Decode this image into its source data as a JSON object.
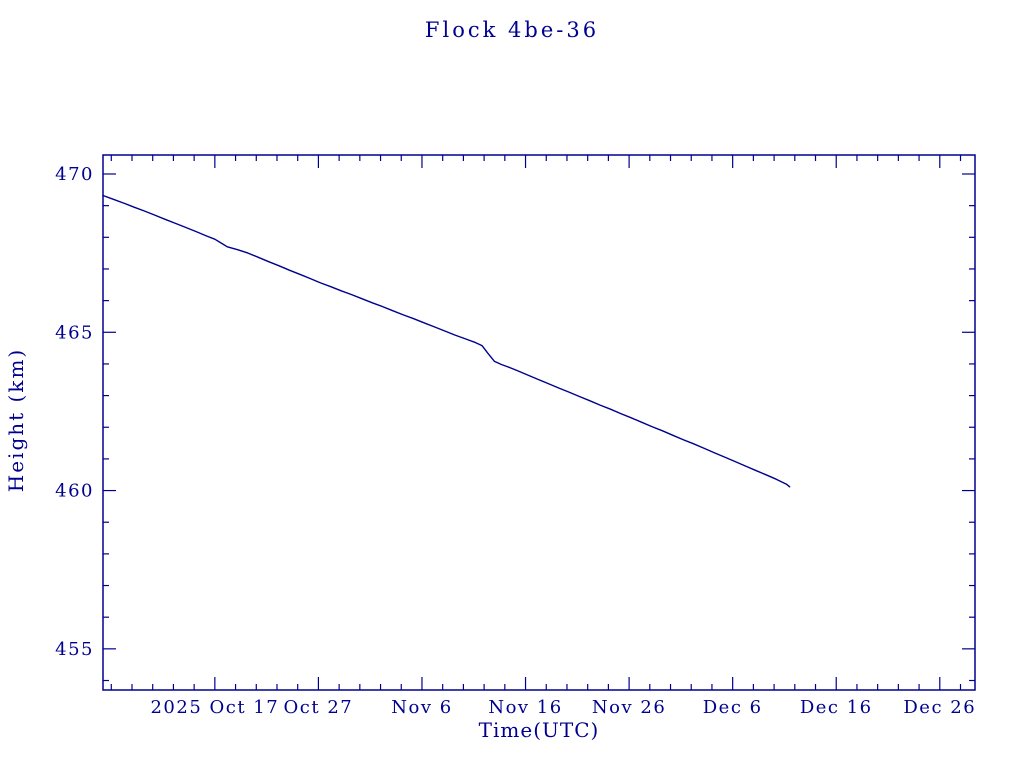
{
  "title": "Flock 4be-36",
  "colors": {
    "accent": "#000090",
    "line": "#000090",
    "background": "#ffffff"
  },
  "chart_data": {
    "type": "line",
    "title": "Flock 4be-36",
    "xlabel": "Time(UTC)",
    "ylabel": "Height (km)",
    "x_unit": "days since 2025 Oct 6",
    "xlim": [
      0,
      84.2
    ],
    "ylim": [
      453.7,
      470.6
    ],
    "x_tick_days": [
      10.8,
      20.8,
      30.8,
      40.8,
      50.8,
      60.8,
      70.8,
      80.8
    ],
    "x_tick_labels": [
      "2025 Oct 17",
      "Oct 27",
      "Nov 6",
      "Nov 16",
      "Nov 26",
      "Dec 6",
      "Dec 16",
      "Dec 26"
    ],
    "x_minor_step": 2,
    "y_ticks": [
      455,
      460,
      465,
      470
    ],
    "y_tick_labels": [
      "455",
      "460",
      "465",
      "470"
    ],
    "y_minor_step": 1,
    "grid": false,
    "legend": null,
    "series": [
      {
        "name": "height",
        "points": [
          [
            0,
            469.32
          ],
          [
            1,
            469.2
          ],
          [
            2,
            469.08
          ],
          [
            3,
            468.95
          ],
          [
            4,
            468.83
          ],
          [
            5,
            468.7
          ],
          [
            6,
            468.57
          ],
          [
            7,
            468.44
          ],
          [
            8,
            468.31
          ],
          [
            9,
            468.18
          ],
          [
            10,
            468.04
          ],
          [
            10.8,
            467.94
          ],
          [
            11.5,
            467.8
          ],
          [
            12,
            467.7
          ],
          [
            13,
            467.61
          ],
          [
            14,
            467.5
          ],
          [
            15,
            467.37
          ],
          [
            16,
            467.23
          ],
          [
            17,
            467.1
          ],
          [
            18,
            466.96
          ],
          [
            19,
            466.83
          ],
          [
            20,
            466.7
          ],
          [
            21,
            466.56
          ],
          [
            22,
            466.44
          ],
          [
            23,
            466.31
          ],
          [
            24,
            466.19
          ],
          [
            25,
            466.06
          ],
          [
            26,
            465.93
          ],
          [
            27,
            465.81
          ],
          [
            28,
            465.68
          ],
          [
            29,
            465.55
          ],
          [
            30,
            465.43
          ],
          [
            31,
            465.3
          ],
          [
            32,
            465.17
          ],
          [
            33,
            465.04
          ],
          [
            34,
            464.91
          ],
          [
            35,
            464.79
          ],
          [
            36,
            464.67
          ],
          [
            36.6,
            464.58
          ],
          [
            37.2,
            464.32
          ],
          [
            37.8,
            464.08
          ],
          [
            38.5,
            463.98
          ],
          [
            39,
            463.92
          ],
          [
            40,
            463.79
          ],
          [
            41,
            463.65
          ],
          [
            42,
            463.51
          ],
          [
            43,
            463.38
          ],
          [
            44,
            463.24
          ],
          [
            45,
            463.11
          ],
          [
            46,
            462.97
          ],
          [
            47,
            462.84
          ],
          [
            48,
            462.7
          ],
          [
            49,
            462.57
          ],
          [
            50,
            462.43
          ],
          [
            51,
            462.3
          ],
          [
            52,
            462.16
          ],
          [
            53,
            462.02
          ],
          [
            54,
            461.89
          ],
          [
            55,
            461.75
          ],
          [
            56,
            461.61
          ],
          [
            57,
            461.48
          ],
          [
            58,
            461.34
          ],
          [
            59,
            461.2
          ],
          [
            60,
            461.06
          ],
          [
            61,
            460.92
          ],
          [
            62,
            460.78
          ],
          [
            63,
            460.64
          ],
          [
            64,
            460.5
          ],
          [
            65,
            460.36
          ],
          [
            66,
            460.2
          ],
          [
            66.3,
            460.12
          ]
        ]
      }
    ]
  }
}
